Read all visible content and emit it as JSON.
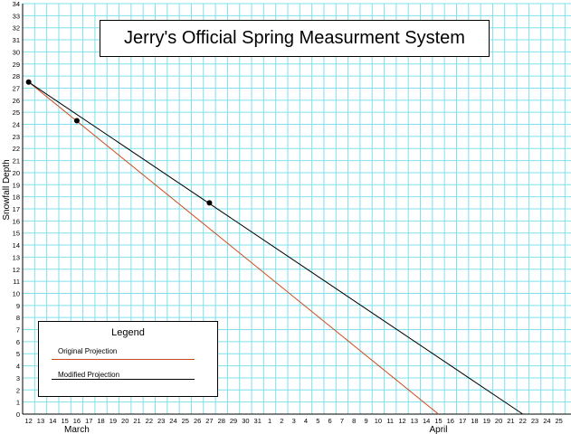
{
  "chart_data": {
    "type": "line",
    "title": "Jerry's Official Spring Measurment System",
    "ylabel": "Snowfall Depth",
    "ylim": [
      0,
      34
    ],
    "x_tick_labels": [
      "12",
      "13",
      "14",
      "15",
      "16",
      "17",
      "18",
      "19",
      "20",
      "21",
      "22",
      "23",
      "24",
      "25",
      "26",
      "27",
      "28",
      "29",
      "30",
      "31",
      "1",
      "2",
      "3",
      "4",
      "5",
      "6",
      "7",
      "8",
      "9",
      "10",
      "11",
      "12",
      "13",
      "14",
      "15",
      "16",
      "17",
      "18",
      "19",
      "20",
      "21",
      "22",
      "23",
      "24",
      "25"
    ],
    "month_labels": [
      {
        "text": "March",
        "at_tick": "16"
      },
      {
        "text": "April",
        "at_tick": "15"
      }
    ],
    "grid": true,
    "legend": {
      "title": "Legend",
      "placement": "bottom-left",
      "entries": [
        {
          "name": "Original Projection",
          "color": "#cc4a1f"
        },
        {
          "name": "Modified Projection",
          "color": "#000000"
        }
      ]
    },
    "series": [
      {
        "name": "Original Projection",
        "color": "#cc4a1f",
        "points": [
          {
            "x": "March 12",
            "y": 27.5
          },
          {
            "x": "April 15",
            "y": 0
          }
        ]
      },
      {
        "name": "Modified Projection",
        "color": "#000000",
        "points": [
          {
            "x": "March 12",
            "y": 27.5
          },
          {
            "x": "April 22",
            "y": 0
          }
        ]
      }
    ],
    "markers": [
      {
        "x": "March 12",
        "y": 27.5
      },
      {
        "x": "March 16",
        "y": 24.3
      },
      {
        "x": "March 27",
        "y": 17.5
      }
    ]
  },
  "colors": {
    "grid": "#7fe0ec",
    "axis": "#000000"
  }
}
